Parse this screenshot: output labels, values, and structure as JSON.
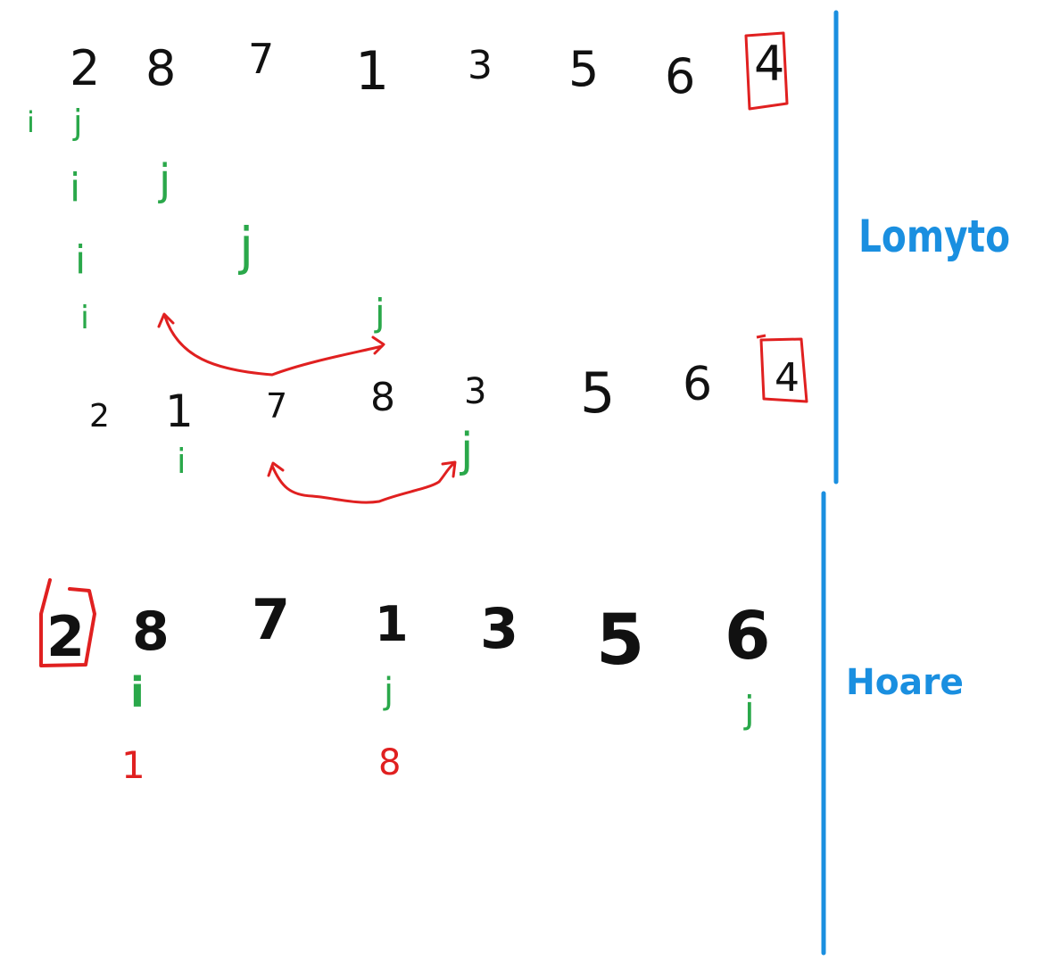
{
  "colors": {
    "ink": "#111111",
    "pointer": "#2aa84a",
    "highlight": "#e02020",
    "section": "#1a8fe0"
  },
  "lomuto": {
    "label": "Lomyto",
    "row1": {
      "values": [
        "2",
        "8",
        "7",
        "1",
        "3",
        "5",
        "6"
      ],
      "pivot": "4"
    },
    "pointer_rows": [
      [
        "i",
        "j"
      ],
      [
        "i",
        "j"
      ],
      [
        "i",
        "j"
      ],
      [
        "i",
        "j"
      ]
    ],
    "row2": {
      "values": [
        "2",
        "1",
        "7",
        "8",
        "3",
        "5",
        "6"
      ],
      "pivot": "4"
    },
    "row2_pointers": [
      "i",
      "j"
    ]
  },
  "hoare": {
    "label": "Hoare",
    "row": {
      "pivot": "2",
      "values": [
        "8",
        "7",
        "1",
        "3",
        "5",
        "6"
      ]
    },
    "pointers": [
      "i",
      "j",
      "j"
    ],
    "swap_notes": [
      "1",
      "8"
    ]
  }
}
